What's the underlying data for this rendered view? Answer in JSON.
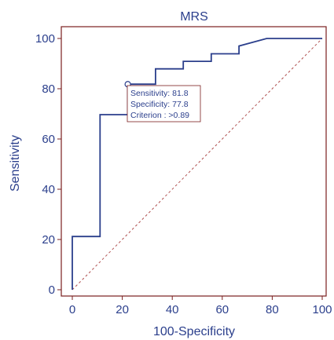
{
  "chart_data": {
    "type": "line",
    "title": "MRS",
    "xlabel": "100-Specificity",
    "ylabel": "Sensitivity",
    "xlim": [
      0,
      100
    ],
    "ylim": [
      0,
      100
    ],
    "x_ticks": [
      "0",
      "20",
      "40",
      "60",
      "80",
      "100"
    ],
    "y_ticks": [
      "0",
      "20",
      "40",
      "60",
      "80",
      "100"
    ],
    "grid": false,
    "series": [
      {
        "x": [
          0,
          0,
          11.1,
          11.1,
          22.2,
          22.2,
          33.3,
          33.3,
          44.4,
          44.4,
          55.6,
          55.6,
          66.7,
          66.7,
          77.8,
          100
        ],
        "y": [
          0,
          21.2,
          21.2,
          69.7,
          69.7,
          81.8,
          81.8,
          87.9,
          87.9,
          90.9,
          90.9,
          93.9,
          93.9,
          97,
          100,
          100
        ]
      }
    ],
    "reference_line": {
      "x": [
        0,
        100
      ],
      "y": [
        0,
        100
      ],
      "style": "dashed"
    },
    "marker": {
      "x": 22.2,
      "y": 81.8
    },
    "annotation": {
      "lines": [
        "Sensitivity: 81.8",
        "Specificity: 77.8",
        "Criterion : >0.89"
      ]
    },
    "colors": {
      "curve": "#2b3f8c",
      "text": "#2b3f8c",
      "frame": "#7a1f1f",
      "reference": "#b05050"
    }
  }
}
